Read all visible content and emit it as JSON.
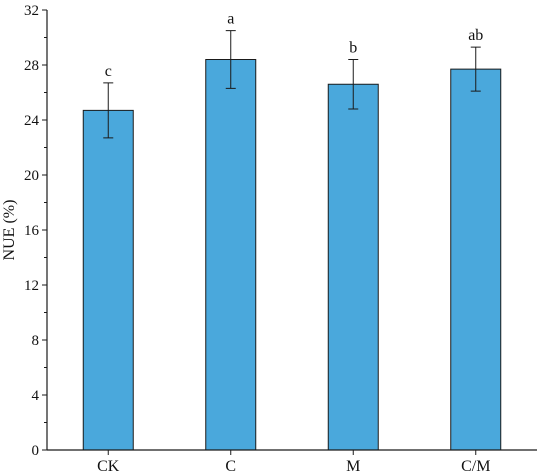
{
  "chart_data": {
    "type": "bar",
    "ylabel": "NUE (%)",
    "xlabel": "",
    "title": "",
    "categories": [
      "CK",
      "C",
      "M",
      "C/M"
    ],
    "values": [
      24.7,
      28.4,
      26.6,
      27.7
    ],
    "error_low": [
      22.7,
      26.3,
      24.8,
      26.1
    ],
    "error_high": [
      26.7,
      30.5,
      28.4,
      29.3
    ],
    "significance": [
      "c",
      "a",
      "b",
      "ab"
    ],
    "ylim": [
      0,
      32
    ],
    "yticks": [
      0,
      4,
      8,
      12,
      16,
      20,
      24,
      28,
      32
    ],
    "ytick_labels": [
      "0",
      "4",
      "8",
      "12",
      "16",
      "20",
      "24",
      "28",
      "32"
    ],
    "grid": false,
    "bar_color": "#4aa8dc"
  }
}
